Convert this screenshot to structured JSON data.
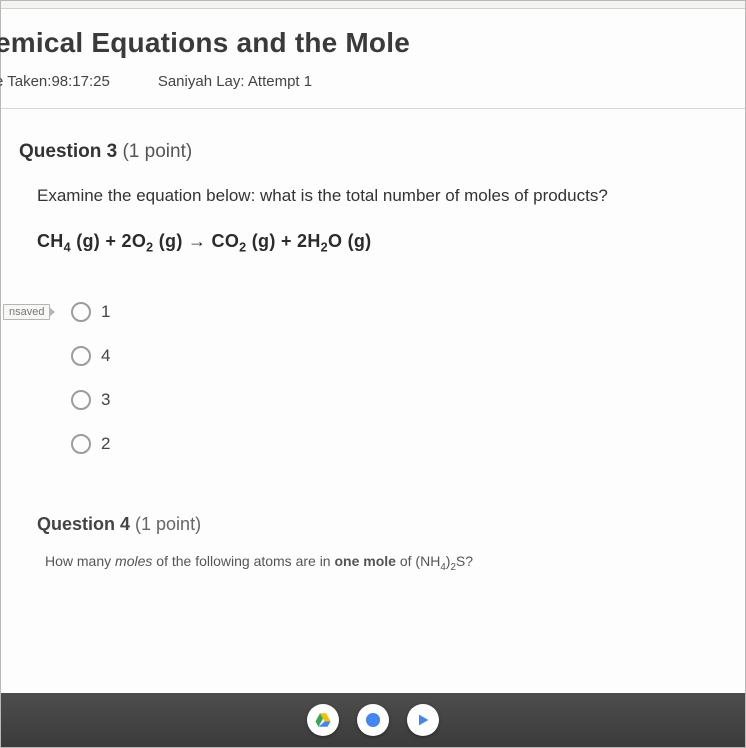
{
  "header": {
    "title": "emical Equations and the Mole",
    "time_taken_label": "e Taken:",
    "time_taken_value": "98:17:25",
    "attempt_label": "Saniyah Lay: Attempt 1"
  },
  "question3": {
    "heading_prefix": "Question ",
    "number": "3",
    "points": " (1 point)",
    "prompt": "Examine the equation below: what is the total number of moles of products?",
    "equation_html": "CH<sub>4</sub> (g) + 2O<sub>2</sub> (g) → CO<sub>2</sub> (g) + 2H<sub>2</sub>O (g)",
    "unsaved_label": "nsaved",
    "options": [
      "1",
      "4",
      "3",
      "2"
    ]
  },
  "question4": {
    "heading_prefix": "Question ",
    "number": "4",
    "points": " (1 point)",
    "prompt_html": "How many <em>moles</em> of the following atoms are in <strong>one mole</strong> of (NH<sub>4</sub>)<sub>2</sub>S?"
  },
  "colors": {
    "page_bg": "#fdfdfd",
    "text_primary": "#333333",
    "text_secondary": "#555555",
    "divider": "#d6d6d4",
    "radio_border": "#9c9c9c",
    "taskbar_bg": "#3b3b3b"
  },
  "taskbar": {
    "icons": [
      "drive-icon",
      "chrome-icon",
      "play-icon"
    ]
  }
}
